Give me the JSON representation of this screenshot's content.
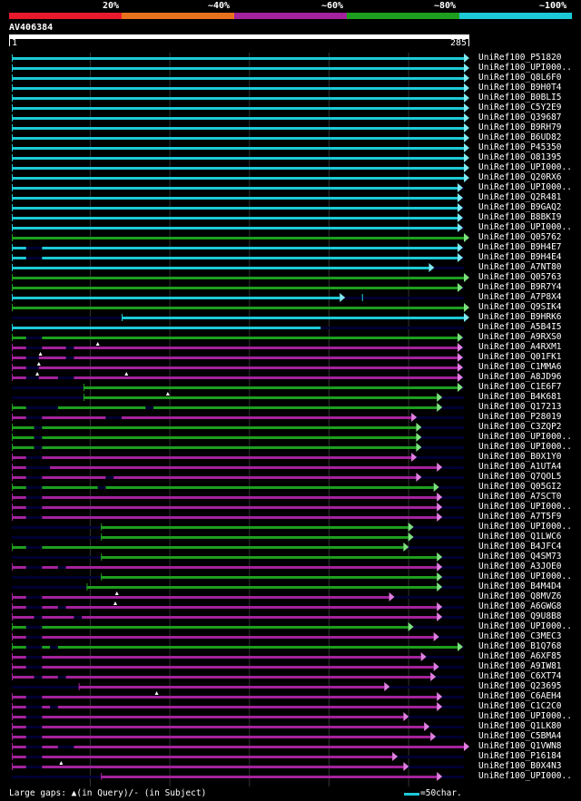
{
  "header": {
    "bins": [
      {
        "label": "20%",
        "color": "#e8192c"
      },
      {
        "label": "~40%",
        "color": "#e8721c"
      },
      {
        "label": "~60%",
        "color": "#a3239c"
      },
      {
        "label": "~80%",
        "color": "#1e9e1e"
      },
      {
        "label": "~100%",
        "color": "#1cc9d6"
      }
    ]
  },
  "query": {
    "name": "AV406384",
    "start": "1",
    "end": "285"
  },
  "colors": {
    "cyan": "#1cc9d6",
    "green": "#1e9e1e",
    "purple": "#a3239c",
    "light_green": "#7ee07e",
    "light_cyan": "#7fe8f0",
    "light_purple": "#e07fe0",
    "track": "#000033"
  },
  "hits": [
    {
      "name": "UniRef100_P51820",
      "color": "cyan",
      "qfrom": 1,
      "qto": 285
    },
    {
      "name": "UniRef100_UPI000..",
      "color": "cyan",
      "qfrom": 1,
      "qto": 285
    },
    {
      "name": "UniRef100_Q8L6F0",
      "color": "cyan",
      "qfrom": 1,
      "qto": 285
    },
    {
      "name": "UniRef100_B9H0T4",
      "color": "cyan",
      "qfrom": 1,
      "qto": 285
    },
    {
      "name": "UniRef100_B0BLI5",
      "color": "cyan",
      "qfrom": 1,
      "qto": 285
    },
    {
      "name": "UniRef100_C5Y2E9",
      "color": "cyan",
      "qfrom": 1,
      "qto": 285
    },
    {
      "name": "UniRef100_Q39687",
      "color": "cyan",
      "qfrom": 1,
      "qto": 285
    },
    {
      "name": "UniRef100_B9RH79",
      "color": "cyan",
      "qfrom": 1,
      "qto": 285
    },
    {
      "name": "UniRef100_B6UD82",
      "color": "cyan",
      "qfrom": 1,
      "qto": 285
    },
    {
      "name": "UniRef100_P45350",
      "color": "cyan",
      "qfrom": 1,
      "qto": 285
    },
    {
      "name": "UniRef100_O81395",
      "color": "cyan",
      "qfrom": 1,
      "qto": 285
    },
    {
      "name": "UniRef100_UPI000..",
      "color": "cyan",
      "qfrom": 1,
      "qto": 285
    },
    {
      "name": "UniRef100_Q20RX6",
      "color": "cyan",
      "qfrom": 1,
      "qto": 285
    },
    {
      "name": "UniRef100_UPI000..",
      "color": "cyan",
      "qfrom": 1,
      "qto": 281
    },
    {
      "name": "UniRef100_Q2R481",
      "color": "cyan",
      "qfrom": 1,
      "qto": 281
    },
    {
      "name": "UniRef100_B9GAQ2",
      "color": "cyan",
      "qfrom": 1,
      "qto": 281
    },
    {
      "name": "UniRef100_B8BKI9",
      "color": "cyan",
      "qfrom": 1,
      "qto": 281
    },
    {
      "name": "UniRef100_UPI000..",
      "color": "cyan",
      "qfrom": 1,
      "qto": 281
    },
    {
      "name": "UniRef100_Q05762",
      "color": "green",
      "qfrom": 1,
      "qto": 285
    },
    {
      "name": "UniRef100_B9H4E7",
      "color": "cyan",
      "qfrom": 1,
      "qto": 281,
      "gaps": [
        [
          10,
          20
        ]
      ]
    },
    {
      "name": "UniRef100_B9H4E4",
      "color": "cyan",
      "qfrom": 1,
      "qto": 281,
      "gaps": [
        [
          10,
          20
        ]
      ]
    },
    {
      "name": "UniRef100_A7NT80",
      "color": "cyan",
      "qfrom": 1,
      "qto": 263
    },
    {
      "name": "UniRef100_Q05763",
      "color": "green",
      "qfrom": 1,
      "qto": 285
    },
    {
      "name": "UniRef100_B9R7Y4",
      "color": "green",
      "qfrom": 1,
      "qto": 281
    },
    {
      "name": "UniRef100_A7P8X4",
      "color": "cyan",
      "qfrom": 1,
      "qto": 207,
      "extra": [
        [
          221,
          221
        ]
      ]
    },
    {
      "name": "UniRef100_Q9SIK4",
      "color": "green",
      "qfrom": 1,
      "qto": 285
    },
    {
      "name": "UniRef100_B9HRK6",
      "color": "cyan",
      "qfrom": 70,
      "qto": 285
    },
    {
      "name": "UniRef100_A5B4I5",
      "color": "cyan",
      "qfrom": 1,
      "qto": 195,
      "noarrow": true
    },
    {
      "name": "UniRef100_A9RXS0",
      "color": "green",
      "qfrom": 1,
      "qto": 281,
      "gaps": [
        [
          10,
          20
        ]
      ],
      "qgap": [
        55
      ]
    },
    {
      "name": "UniRef100_A4RXM1",
      "color": "purple",
      "qfrom": 1,
      "qto": 281,
      "gaps": [
        [
          10,
          20
        ],
        [
          35,
          40
        ]
      ],
      "qgap": [
        19
      ]
    },
    {
      "name": "UniRef100_Q01FK1",
      "color": "purple",
      "qfrom": 1,
      "qto": 281,
      "gaps": [
        [
          10,
          18
        ],
        [
          35,
          40
        ]
      ],
      "qgap": [
        18
      ]
    },
    {
      "name": "UniRef100_C1MMA6",
      "color": "purple",
      "qfrom": 1,
      "qto": 281,
      "gaps": [
        [
          10,
          18
        ]
      ],
      "qgap": [
        17,
        73
      ]
    },
    {
      "name": "UniRef100_A8JD96",
      "color": "purple",
      "qfrom": 1,
      "qto": 281,
      "gaps": [
        [
          10,
          18
        ],
        [
          30,
          40
        ]
      ]
    },
    {
      "name": "UniRef100_C1E6F7",
      "color": "green",
      "qfrom": 46,
      "qto": 281,
      "qgap": [
        99
      ]
    },
    {
      "name": "UniRef100_B4K681",
      "color": "green",
      "qfrom": 46,
      "qto": 268
    },
    {
      "name": "UniRef100_Q17213",
      "color": "green",
      "qfrom": 1,
      "qto": 268,
      "gaps": [
        [
          10,
          30
        ],
        [
          85,
          90
        ]
      ]
    },
    {
      "name": "UniRef100_P28019",
      "color": "purple",
      "qfrom": 1,
      "qto": 252,
      "gaps": [
        [
          10,
          20
        ],
        [
          60,
          70
        ]
      ]
    },
    {
      "name": "UniRef100_C3ZQP2",
      "color": "green",
      "qfrom": 1,
      "qto": 255,
      "gaps": [
        [
          15,
          20
        ]
      ]
    },
    {
      "name": "UniRef100_UPI000..",
      "color": "green",
      "qfrom": 1,
      "qto": 255,
      "gaps": [
        [
          15,
          20
        ]
      ]
    },
    {
      "name": "UniRef100_UPI000..",
      "color": "green",
      "qfrom": 1,
      "qto": 255,
      "gaps": [
        [
          15,
          20
        ]
      ]
    },
    {
      "name": "UniRef100_B0X1Y0",
      "color": "purple",
      "qfrom": 1,
      "qto": 252,
      "gaps": [
        [
          10,
          20
        ]
      ]
    },
    {
      "name": "UniRef100_A1UTA4",
      "color": "purple",
      "qfrom": 1,
      "qto": 268,
      "gaps": [
        [
          10,
          25
        ]
      ]
    },
    {
      "name": "UniRef100_Q7QOL5",
      "color": "purple",
      "qfrom": 1,
      "qto": 255,
      "gaps": [
        [
          10,
          20
        ],
        [
          60,
          65
        ]
      ]
    },
    {
      "name": "UniRef100_Q05GI2",
      "color": "green",
      "qfrom": 1,
      "qto": 266,
      "gaps": [
        [
          10,
          20
        ],
        [
          55,
          60
        ]
      ]
    },
    {
      "name": "UniRef100_A7SCT0",
      "color": "purple",
      "qfrom": 1,
      "qto": 268,
      "gaps": [
        [
          10,
          20
        ]
      ]
    },
    {
      "name": "UniRef100_UPI000..",
      "color": "purple",
      "qfrom": 1,
      "qto": 268,
      "gaps": [
        [
          10,
          20
        ]
      ]
    },
    {
      "name": "UniRef100_A7T5F9",
      "color": "purple",
      "qfrom": 1,
      "qto": 268,
      "gaps": [
        [
          10,
          20
        ]
      ]
    },
    {
      "name": "UniRef100_UPI000..",
      "color": "green",
      "qfrom": 57,
      "qto": 250
    },
    {
      "name": "UniRef100_Q1LWC6",
      "color": "green",
      "qfrom": 57,
      "qto": 250
    },
    {
      "name": "UniRef100_B4JFC4",
      "color": "green",
      "qfrom": 1,
      "qto": 247,
      "gaps": [
        [
          10,
          20
        ]
      ]
    },
    {
      "name": "UniRef100_Q4SM73",
      "color": "green",
      "qfrom": 57,
      "qto": 268
    },
    {
      "name": "UniRef100_A3JOE0",
      "color": "purple",
      "qfrom": 1,
      "qto": 268,
      "gaps": [
        [
          10,
          20
        ],
        [
          30,
          35
        ]
      ]
    },
    {
      "name": "UniRef100_UPI000..",
      "color": "green",
      "qfrom": 57,
      "qto": 268
    },
    {
      "name": "UniRef100_B4M4D4",
      "color": "green",
      "qfrom": 48,
      "qto": 268,
      "qgap": [
        67
      ]
    },
    {
      "name": "UniRef100_Q8MVZ6",
      "color": "purple",
      "qfrom": 1,
      "qto": 238,
      "gaps": [
        [
          10,
          20
        ]
      ],
      "qgap": [
        66
      ]
    },
    {
      "name": "UniRef100_A6GWG8",
      "color": "purple",
      "qfrom": 1,
      "qto": 268,
      "gaps": [
        [
          10,
          20
        ],
        [
          30,
          35
        ]
      ]
    },
    {
      "name": "UniRef100_Q9U8B8",
      "color": "purple",
      "qfrom": 1,
      "qto": 268,
      "gaps": [
        [
          15,
          20
        ],
        [
          40,
          45
        ]
      ]
    },
    {
      "name": "UniRef100_UPI000..",
      "color": "green",
      "qfrom": 1,
      "qto": 250,
      "gaps": [
        [
          10,
          20
        ]
      ]
    },
    {
      "name": "UniRef100_C3MEC3",
      "color": "purple",
      "qfrom": 1,
      "qto": 266,
      "gaps": [
        [
          10,
          20
        ]
      ]
    },
    {
      "name": "UniRef100_B1Q768",
      "color": "green",
      "qfrom": 1,
      "qto": 281,
      "gaps": [
        [
          10,
          20
        ],
        [
          25,
          30
        ]
      ]
    },
    {
      "name": "UniRef100_A6XF85",
      "color": "purple",
      "qfrom": 1,
      "qto": 258,
      "gaps": [
        [
          10,
          20
        ]
      ]
    },
    {
      "name": "UniRef100_A9IW81",
      "color": "purple",
      "qfrom": 1,
      "qto": 266,
      "gaps": [
        [
          10,
          20
        ]
      ]
    },
    {
      "name": "UniRef100_C6XT74",
      "color": "purple",
      "qfrom": 1,
      "qto": 264,
      "gaps": [
        [
          15,
          20
        ],
        [
          30,
          35
        ]
      ]
    },
    {
      "name": "UniRef100_Q23695",
      "color": "purple",
      "qfrom": 43,
      "qto": 235,
      "qgap": [
        92
      ]
    },
    {
      "name": "UniRef100_C6AEH4",
      "color": "purple",
      "qfrom": 1,
      "qto": 268,
      "gaps": [
        [
          10,
          20
        ]
      ]
    },
    {
      "name": "UniRef100_C1C2C0",
      "color": "purple",
      "qfrom": 1,
      "qto": 268,
      "gaps": [
        [
          10,
          20
        ],
        [
          25,
          30
        ]
      ]
    },
    {
      "name": "UniRef100_UPI000..",
      "color": "purple",
      "qfrom": 1,
      "qto": 247,
      "gaps": [
        [
          10,
          20
        ]
      ]
    },
    {
      "name": "UniRef100_Q1LK80",
      "color": "purple",
      "qfrom": 1,
      "qto": 260,
      "gaps": [
        [
          10,
          20
        ]
      ]
    },
    {
      "name": "UniRef100_C5BMA4",
      "color": "purple",
      "qfrom": 1,
      "qto": 264,
      "gaps": [
        [
          10,
          20
        ]
      ]
    },
    {
      "name": "UniRef100_Q1VWN8",
      "color": "purple",
      "qfrom": 1,
      "qto": 285,
      "gaps": [
        [
          10,
          20
        ],
        [
          30,
          40
        ]
      ]
    },
    {
      "name": "UniRef100_P16184",
      "color": "purple",
      "qfrom": 1,
      "qto": 240,
      "gaps": [
        [
          10,
          20
        ]
      ],
      "qgap": [
        32
      ]
    },
    {
      "name": "UniRef100_B0X4N3",
      "color": "purple",
      "qfrom": 1,
      "qto": 247,
      "gaps": [
        [
          10,
          20
        ]
      ]
    },
    {
      "name": "UniRef100_UPI000..",
      "color": "purple",
      "qfrom": 57,
      "qto": 268
    }
  ],
  "legend": {
    "gaps_text": "Large gaps: ▲(in Query)/- (in Subject)",
    "unit_text": "=50char."
  }
}
